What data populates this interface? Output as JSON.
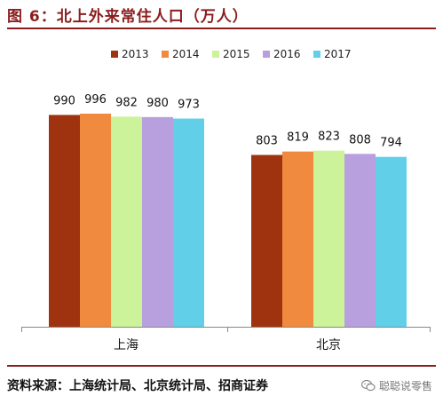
{
  "header": {
    "title": "图 6：北上外来常住人口（万人）"
  },
  "footer": {
    "source": "资料来源：上海统计局、北京统计局、招商证券",
    "watermark": "聪聪说零售",
    "watermark_icon": "wechat-icon"
  },
  "chart_data": {
    "type": "bar",
    "title": "",
    "xlabel": "",
    "ylabel": "",
    "categories": [
      "上海",
      "北京"
    ],
    "series": [
      {
        "name": "2013",
        "color": "#a0330f",
        "values": [
          990,
          803
        ]
      },
      {
        "name": "2014",
        "color": "#f08a3e",
        "values": [
          996,
          819
        ]
      },
      {
        "name": "2015",
        "color": "#ccf29a",
        "values": [
          982,
          823
        ]
      },
      {
        "name": "2016",
        "color": "#b7a0dd",
        "values": [
          980,
          808
        ]
      },
      {
        "name": "2017",
        "color": "#62cfe8",
        "values": [
          973,
          794
        ]
      }
    ],
    "ylim": [
      0,
      1100
    ],
    "grid": false,
    "legend_position": "top-center",
    "data_labels": true
  }
}
